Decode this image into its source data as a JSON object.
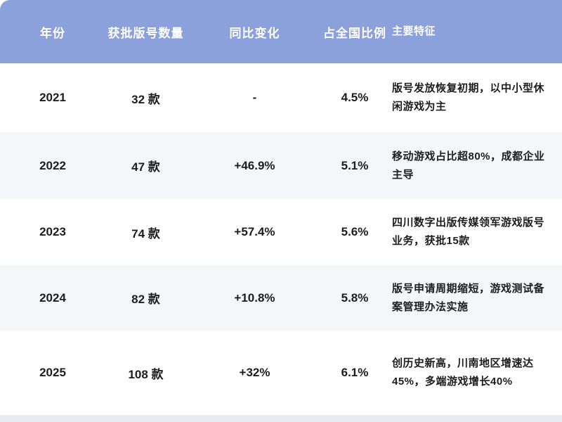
{
  "colors": {
    "header_bg": "#8CA0DB",
    "header_text": "#FFFFFF",
    "row_white_bg": "#FFFFFF",
    "row_alt_bg": "#F4F6FA",
    "body_text": "#1D1D1F",
    "bottom_strip_bg": "#E9EDF3"
  },
  "chart_data": {
    "type": "table",
    "title": "",
    "columns": [
      "年份",
      "获批版号数量",
      "同比变化",
      "占全国比例",
      "主要特征"
    ],
    "rows": [
      {
        "year": "2021",
        "count": "32 款",
        "yoy": "-",
        "share": "4.5%",
        "features": "版号发放恢复初期，以中小型休闲游戏为主"
      },
      {
        "year": "2022",
        "count": "47 款",
        "yoy": "+46.9%",
        "share": "5.1%",
        "features": "移动游戏占比超80%，成都企业主导"
      },
      {
        "year": "2023",
        "count": "74 款",
        "yoy": "+57.4%",
        "share": "5.6%",
        "features": "四川数字出版传媒领军游戏版号业务，获批15款"
      },
      {
        "year": "2024",
        "count": "82 款",
        "yoy": "+10.8%",
        "share": "5.8%",
        "features": "版号申请周期缩短，游戏测试备案管理办法实施"
      },
      {
        "year": "2025",
        "count": "108 款",
        "yoy": "+32%",
        "share": "6.1%",
        "features": "创历史新高，川南地区增速达45%，多端游戏增长40%"
      }
    ],
    "numeric_summary": {
      "years": [
        2021,
        2022,
        2023,
        2024,
        2025
      ],
      "approved_counts": [
        32,
        47,
        74,
        82,
        108
      ],
      "yoy_change_pct": [
        null,
        46.9,
        57.4,
        10.8,
        32
      ],
      "national_share_pct": [
        4.5,
        5.1,
        5.6,
        5.8,
        6.1
      ]
    }
  }
}
